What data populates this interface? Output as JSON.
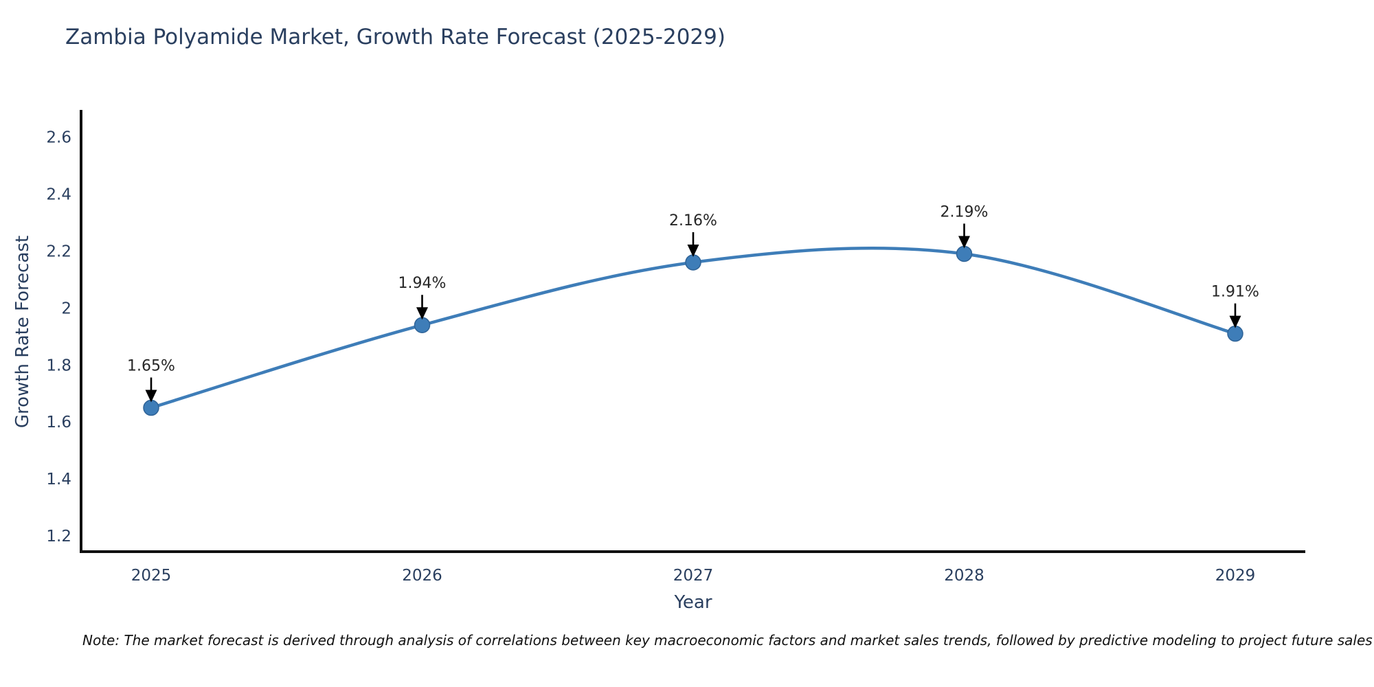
{
  "chart": {
    "title": "Zambia Polyamide Market, Growth Rate Forecast (2025-2029)",
    "xlabel": "Year",
    "ylabel": "Growth Rate Forecast"
  },
  "note": "Note: The market forecast is derived through analysis of correlations between key macroeconomic factors and market sales trends, followed by predictive modeling to project future sales",
  "chart_data": {
    "type": "line",
    "title": "Zambia Polyamide Market, Growth Rate Forecast (2025-2029)",
    "xlabel": "Year",
    "ylabel": "Growth Rate Forecast",
    "x": [
      "2025",
      "2026",
      "2027",
      "2028",
      "2029"
    ],
    "series": [
      {
        "name": "Growth Rate Forecast",
        "values": [
          1.65,
          1.94,
          2.16,
          2.19,
          1.91
        ]
      }
    ],
    "point_labels": [
      "1.65%",
      "1.94%",
      "2.16%",
      "2.19%",
      "1.91%"
    ],
    "yticks": [
      1.2,
      1.4,
      1.6,
      1.8,
      2,
      2.2,
      2.4,
      2.6
    ],
    "ylim": [
      1.145,
      2.695
    ],
    "grid": false,
    "legend": "none",
    "line_color": "#3e7db8",
    "marker_color": "#3e7db8",
    "marker_edge_color": "#2f6397",
    "axis_color": "#0f0f0f",
    "tick_color": "#2a3f5f",
    "annotation_color": "#262626",
    "annotation_arrow_color": "#000000"
  }
}
